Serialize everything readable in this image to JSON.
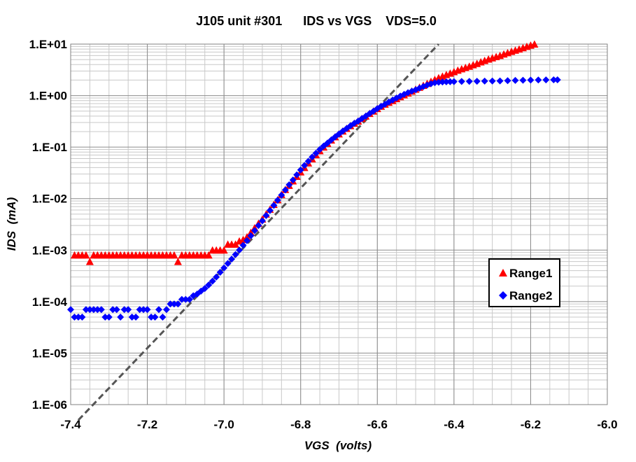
{
  "chart_data": {
    "type": "scatter",
    "title": "J105 unit #301      IDS vs VGS    VDS=5.0",
    "xlabel": "VGS  (volts)",
    "ylabel": "IDS  (mA)",
    "xlim": [
      -7.4,
      -6.0
    ],
    "ylim": [
      1e-06,
      10
    ],
    "yscale": "log",
    "x_ticks": [
      -7.4,
      -7.2,
      -7.0,
      -6.8,
      -6.6,
      -6.4,
      -6.2,
      -6.0
    ],
    "x_tick_labels": [
      "-7.4",
      "-7.2",
      "-7.0",
      "-6.8",
      "-6.6",
      "-6.4",
      "-6.2",
      "-6.0"
    ],
    "y_ticks": [
      1e-06,
      1e-05,
      0.0001,
      0.001,
      0.01,
      0.1,
      1,
      10
    ],
    "y_tick_labels": [
      "1.E-06",
      "1.E-05",
      "1.E-04",
      "1.E-03",
      "1.E-02",
      "1.E-01",
      "1.E+00",
      "1.E+01"
    ],
    "grid": true,
    "legend_position": "right",
    "series": [
      {
        "name": "Range1",
        "marker": "triangle",
        "color": "#ff0000",
        "x": [
          -7.39,
          -7.38,
          -7.37,
          -7.36,
          -7.35,
          -7.34,
          -7.33,
          -7.32,
          -7.31,
          -7.3,
          -7.29,
          -7.28,
          -7.27,
          -7.26,
          -7.25,
          -7.24,
          -7.23,
          -7.22,
          -7.21,
          -7.2,
          -7.19,
          -7.18,
          -7.17,
          -7.16,
          -7.15,
          -7.14,
          -7.13,
          -7.12,
          -7.11,
          -7.1,
          -7.09,
          -7.08,
          -7.07,
          -7.06,
          -7.05,
          -7.04,
          -7.03,
          -7.02,
          -7.01,
          -7.0,
          -6.99,
          -6.98,
          -6.97,
          -6.96,
          -6.95,
          -6.94,
          -6.93,
          -6.92,
          -6.91,
          -6.9,
          -6.89,
          -6.88,
          -6.87,
          -6.86,
          -6.85,
          -6.84,
          -6.83,
          -6.82,
          -6.81,
          -6.8,
          -6.79,
          -6.78,
          -6.77,
          -6.76,
          -6.75,
          -6.74,
          -6.73,
          -6.72,
          -6.71,
          -6.7,
          -6.69,
          -6.68,
          -6.67,
          -6.66,
          -6.65,
          -6.64,
          -6.63,
          -6.62,
          -6.61,
          -6.6,
          -6.59,
          -6.58,
          -6.57,
          -6.56,
          -6.55,
          -6.54,
          -6.53,
          -6.52,
          -6.51,
          -6.5,
          -6.49,
          -6.48,
          -6.47,
          -6.46,
          -6.45,
          -6.44,
          -6.43,
          -6.42,
          -6.41,
          -6.4,
          -6.39,
          -6.38,
          -6.37,
          -6.36,
          -6.35,
          -6.34,
          -6.33,
          -6.32,
          -6.31,
          -6.3,
          -6.29,
          -6.28,
          -6.27,
          -6.26,
          -6.25,
          -6.24,
          -6.23,
          -6.22,
          -6.21,
          -6.2,
          -6.19
        ],
        "y": [
          0.0008,
          0.0008,
          0.0008,
          0.0008,
          0.0006,
          0.0008,
          0.0008,
          0.0008,
          0.0008,
          0.0008,
          0.0008,
          0.0008,
          0.0008,
          0.0008,
          0.0008,
          0.0008,
          0.0008,
          0.0008,
          0.0008,
          0.0008,
          0.0008,
          0.0008,
          0.0008,
          0.0008,
          0.0008,
          0.0008,
          0.0008,
          0.0006,
          0.0008,
          0.0008,
          0.0008,
          0.0008,
          0.0008,
          0.0008,
          0.0008,
          0.0008,
          0.001,
          0.001,
          0.001,
          0.001,
          0.0013,
          0.0013,
          0.0013,
          0.0015,
          0.0016,
          0.0018,
          0.0022,
          0.0027,
          0.0033,
          0.004,
          0.005,
          0.0062,
          0.0077,
          0.0095,
          0.012,
          0.015,
          0.018,
          0.022,
          0.027,
          0.033,
          0.04,
          0.049,
          0.059,
          0.071,
          0.085,
          0.1,
          0.118,
          0.137,
          0.158,
          0.18,
          0.205,
          0.23,
          0.26,
          0.29,
          0.32,
          0.36,
          0.4,
          0.45,
          0.5,
          0.56,
          0.62,
          0.68,
          0.74,
          0.8,
          0.87,
          0.95,
          1.03,
          1.12,
          1.22,
          1.33,
          1.45,
          1.58,
          1.72,
          1.88,
          2.05,
          2.22,
          2.38,
          2.55,
          2.72,
          2.9,
          3.1,
          3.3,
          3.5,
          3.7,
          3.95,
          4.2,
          4.5,
          4.8,
          5.1,
          5.4,
          5.7,
          6.0,
          6.4,
          6.8,
          7.2,
          7.6,
          8.0,
          8.5,
          9.0,
          9.5,
          10.0
        ]
      },
      {
        "name": "Range2",
        "marker": "diamond",
        "color": "#0000ff",
        "x": [
          -7.4,
          -7.39,
          -7.38,
          -7.37,
          -7.36,
          -7.35,
          -7.34,
          -7.33,
          -7.32,
          -7.31,
          -7.3,
          -7.29,
          -7.28,
          -7.27,
          -7.26,
          -7.25,
          -7.24,
          -7.23,
          -7.22,
          -7.21,
          -7.2,
          -7.19,
          -7.18,
          -7.17,
          -7.16,
          -7.15,
          -7.14,
          -7.13,
          -7.12,
          -7.11,
          -7.1,
          -7.09,
          -7.08,
          -7.07,
          -7.06,
          -7.05,
          -7.04,
          -7.03,
          -7.02,
          -7.01,
          -7.0,
          -6.99,
          -6.98,
          -6.97,
          -6.96,
          -6.95,
          -6.94,
          -6.93,
          -6.92,
          -6.91,
          -6.9,
          -6.89,
          -6.88,
          -6.87,
          -6.86,
          -6.85,
          -6.84,
          -6.83,
          -6.82,
          -6.81,
          -6.8,
          -6.79,
          -6.78,
          -6.77,
          -6.76,
          -6.75,
          -6.74,
          -6.73,
          -6.72,
          -6.71,
          -6.7,
          -6.69,
          -6.68,
          -6.67,
          -6.66,
          -6.65,
          -6.64,
          -6.63,
          -6.62,
          -6.61,
          -6.6,
          -6.59,
          -6.58,
          -6.57,
          -6.56,
          -6.55,
          -6.54,
          -6.53,
          -6.52,
          -6.51,
          -6.5,
          -6.49,
          -6.48,
          -6.47,
          -6.46,
          -6.45,
          -6.44,
          -6.43,
          -6.42,
          -6.41,
          -6.4,
          -6.38,
          -6.36,
          -6.34,
          -6.32,
          -6.3,
          -6.28,
          -6.26,
          -6.24,
          -6.22,
          -6.2,
          -6.18,
          -6.16,
          -6.14,
          -6.13
        ],
        "y": [
          7e-05,
          5e-05,
          5e-05,
          5e-05,
          7e-05,
          7e-05,
          7e-05,
          7e-05,
          7e-05,
          5e-05,
          5e-05,
          7e-05,
          7e-05,
          5e-05,
          7e-05,
          7e-05,
          5e-05,
          5e-05,
          7e-05,
          7e-05,
          7e-05,
          5e-05,
          5e-05,
          7e-05,
          5e-05,
          7e-05,
          9e-05,
          9e-05,
          9e-05,
          0.00011,
          0.00011,
          0.00011,
          0.00013,
          0.00014,
          0.00016,
          0.00018,
          0.00021,
          0.00025,
          0.0003,
          0.00037,
          0.00045,
          0.00055,
          0.00067,
          0.00082,
          0.001,
          0.00124,
          0.00153,
          0.0019,
          0.0024,
          0.003,
          0.0037,
          0.0047,
          0.0059,
          0.0074,
          0.0093,
          0.0117,
          0.0147,
          0.0185,
          0.023,
          0.029,
          0.036,
          0.044,
          0.053,
          0.064,
          0.076,
          0.09,
          0.105,
          0.12,
          0.138,
          0.158,
          0.18,
          0.205,
          0.23,
          0.26,
          0.29,
          0.32,
          0.36,
          0.4,
          0.45,
          0.5,
          0.56,
          0.62,
          0.68,
          0.75,
          0.82,
          0.9,
          0.98,
          1.06,
          1.14,
          1.22,
          1.3,
          1.4,
          1.5,
          1.6,
          1.7,
          1.78,
          1.82,
          1.84,
          1.85,
          1.86,
          1.87,
          1.88,
          1.89,
          1.9,
          1.91,
          1.92,
          1.93,
          1.95,
          1.97,
          1.99,
          2.0,
          2.01,
          2.02,
          2.03,
          2.03
        ]
      }
    ],
    "reference_line": {
      "style": "dashed",
      "color": "#555555",
      "x": [
        -7.38,
        -6.44
      ],
      "y": [
        5e-07,
        10
      ]
    }
  },
  "legend": {
    "range1_label": "Range1",
    "range2_label": "Range2"
  }
}
